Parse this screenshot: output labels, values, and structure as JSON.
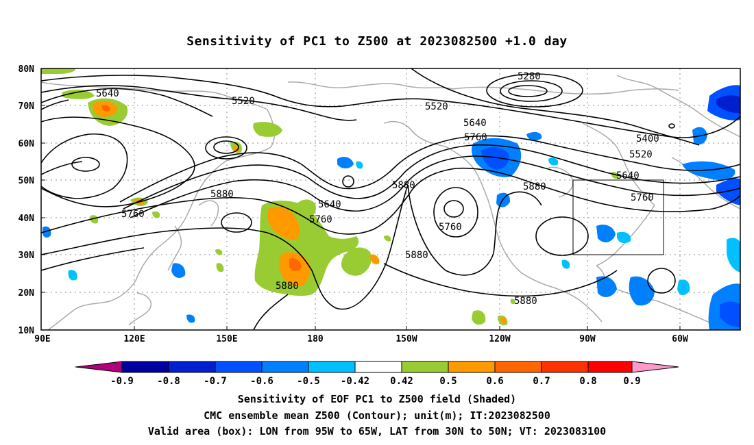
{
  "title": "Sensitivity of PC1 to Z500 at 2023082500 +1.0 day",
  "lat_labels": [
    "80N",
    "70N",
    "60N",
    "50N",
    "40N",
    "30N",
    "20N",
    "10N"
  ],
  "lon_labels": [
    "90E",
    "120E",
    "150E",
    "180",
    "150W",
    "120W",
    "90W",
    "60W"
  ],
  "contour_labels": {
    "c5280": "5280",
    "c5400": "5400",
    "c5520a": "5520",
    "c5520b": "5520",
    "c5520c": "5520",
    "c5640a": "5640",
    "c5640b": "5640",
    "c5640c": "5640",
    "c5640d": "5640",
    "c5760a": "5760",
    "c5760b": "5760",
    "c5760c": "5760",
    "c5760d": "5760",
    "c5760e": "5760",
    "c5880a": "5880",
    "c5880b": "5880",
    "c5880c": "5880",
    "c5880d": "5880",
    "c5880e": "5880"
  },
  "colorbar": {
    "colors": [
      "#b0007a",
      "#0000a0",
      "#0020d0",
      "#0050ff",
      "#0080ff",
      "#00c0ff",
      "#ffffff",
      "#99cc33",
      "#ff9900",
      "#ff6600",
      "#ff3300",
      "#ff0000",
      "#ff99cc"
    ],
    "labels": [
      "-0.9",
      "-0.8",
      "-0.7",
      "-0.6",
      "-0.5",
      "-0.42",
      "0.42",
      "0.5",
      "0.6",
      "0.7",
      "0.8",
      "0.9"
    ]
  },
  "captions": {
    "line1": "Sensitivity of EOF PC1 to Z500 field (Shaded)",
    "line2": "CMC ensemble mean Z500 (Contour); unit(m); IT:2023082500",
    "line3": "Valid area (box): LON from 95W to 65W, LAT from 30N to 50N; VT: 2023083100"
  }
}
